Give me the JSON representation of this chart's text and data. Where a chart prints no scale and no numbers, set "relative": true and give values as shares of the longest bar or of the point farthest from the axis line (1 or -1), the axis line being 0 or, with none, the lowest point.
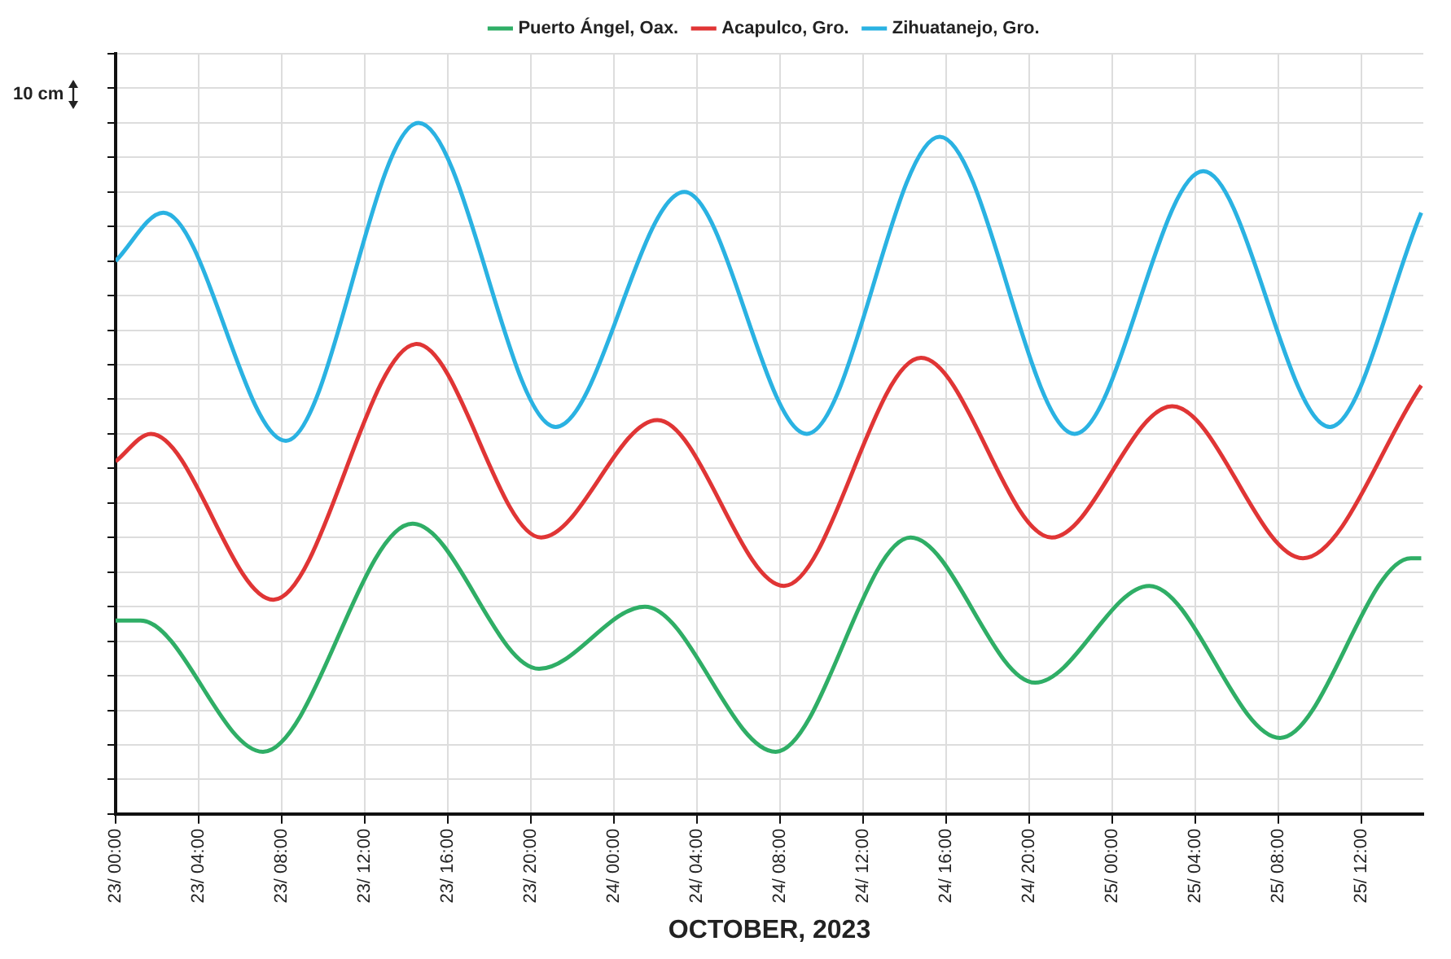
{
  "chart_data": {
    "type": "line",
    "xlabel": "OCTOBER, 2023",
    "relative": true,
    "legend": "top",
    "grid": true,
    "marker": "none",
    "line_style": "solid",
    "tick_labels": "x",
    "xlim": [
      "2023-10-23T00:00",
      "2023-10-25T15:00"
    ],
    "xticks": [
      {
        "value": "2023-10-23T00:00",
        "label": "23/ 00:00"
      },
      {
        "value": "2023-10-23T04:00",
        "label": "23/ 04:00"
      },
      {
        "value": "2023-10-23T08:00",
        "label": "23/ 08:00"
      },
      {
        "value": "2023-10-23T12:00",
        "label": "23/ 12:00"
      },
      {
        "value": "2023-10-23T16:00",
        "label": "23/ 16:00"
      },
      {
        "value": "2023-10-23T20:00",
        "label": "23/ 20:00"
      },
      {
        "value": "2023-10-24T00:00",
        "label": "24/ 00:00"
      },
      {
        "value": "2023-10-24T04:00",
        "label": "24/ 04:00"
      },
      {
        "value": "2023-10-24T08:00",
        "label": "24/ 08:00"
      },
      {
        "value": "2023-10-24T12:00",
        "label": "24/ 12:00"
      },
      {
        "value": "2023-10-24T16:00",
        "label": "24/ 16:00"
      },
      {
        "value": "2023-10-24T20:00",
        "label": "24/ 20:00"
      },
      {
        "value": "2023-10-25T00:00",
        "label": "25/ 00:00"
      },
      {
        "value": "2023-10-25T04:00",
        "label": "25/ 04:00"
      },
      {
        "value": "2023-10-25T08:00",
        "label": "25/ 08:00"
      },
      {
        "value": "2023-10-25T12:00",
        "label": "25/ 12:00"
      }
    ],
    "annotations": [
      "10 cm"
    ],
    "series": [
      {
        "name": "Puerto Ángel, Oax.",
        "color": "#2fae66",
        "x": [
          "2023-10-23T00:00",
          "2023-10-23T01:12",
          "2023-10-23T07:06",
          "2023-10-23T14:18",
          "2023-10-23T20:24",
          "2023-10-24T01:30",
          "2023-10-24T07:48",
          "2023-10-24T14:18",
          "2023-10-24T20:18",
          "2023-10-25T01:48",
          "2023-10-25T08:06",
          "2023-10-25T14:24",
          "2023-10-25T14:54"
        ],
        "values": [
          0.28,
          0.28,
          0.09,
          0.42,
          0.21,
          0.3,
          0.09,
          0.4,
          0.19,
          0.33,
          0.11,
          0.37,
          0.37
        ]
      },
      {
        "name": "Acapulco, Gro.",
        "color": "#e03535",
        "x": [
          "2023-10-23T00:00",
          "2023-10-23T01:42",
          "2023-10-23T07:36",
          "2023-10-23T14:30",
          "2023-10-23T20:30",
          "2023-10-24T02:06",
          "2023-10-24T08:12",
          "2023-10-24T14:48",
          "2023-10-24T21:06",
          "2023-10-25T02:54",
          "2023-10-25T09:12",
          "2023-10-25T14:54"
        ],
        "values": [
          0.51,
          0.55,
          0.31,
          0.68,
          0.4,
          0.57,
          0.33,
          0.66,
          0.4,
          0.59,
          0.37,
          0.62
        ]
      },
      {
        "name": "Zihuatanejo, Gro.",
        "color": "#2ab2e2",
        "x": [
          "2023-10-23T00:00",
          "2023-10-23T02:18",
          "2023-10-23T08:12",
          "2023-10-23T14:36",
          "2023-10-23T21:12",
          "2023-10-24T03:24",
          "2023-10-24T09:18",
          "2023-10-24T15:42",
          "2023-10-24T22:12",
          "2023-10-25T04:24",
          "2023-10-25T10:30",
          "2023-10-25T14:54"
        ],
        "values": [
          0.8,
          0.87,
          0.54,
          1,
          0.56,
          0.9,
          0.55,
          0.98,
          0.55,
          0.93,
          0.56,
          0.87
        ]
      }
    ]
  }
}
